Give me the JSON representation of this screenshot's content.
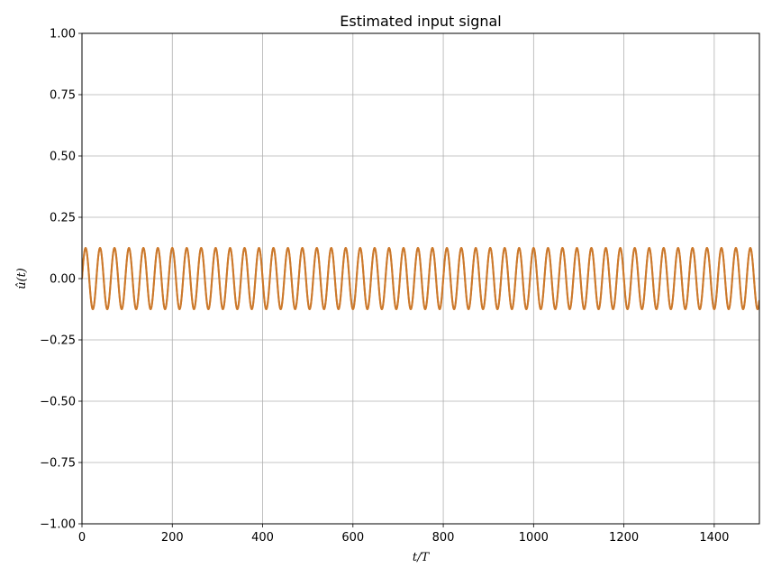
{
  "chart_data": {
    "type": "line",
    "title": "Estimated input signal",
    "xlabel": "t/T",
    "ylabel": "û(t)",
    "xlim": [
      0,
      1500
    ],
    "ylim": [
      -1.0,
      1.0
    ],
    "xticks": [
      0,
      200,
      400,
      600,
      800,
      1000,
      1200,
      1400
    ],
    "xtick_labels": [
      "0",
      "200",
      "400",
      "600",
      "800",
      "1000",
      "1200",
      "1400"
    ],
    "yticks": [
      -1.0,
      -0.75,
      -0.5,
      -0.25,
      0.0,
      0.25,
      0.5,
      0.75,
      1.0
    ],
    "ytick_labels": [
      "−1.00",
      "−0.75",
      "−0.50",
      "−0.25",
      "0.00",
      "0.25",
      "0.50",
      "0.75",
      "1.00"
    ],
    "grid": true,
    "series": [
      {
        "color": "#ff7f0e",
        "signal": "sine",
        "amplitude": 0.125,
        "period": 32,
        "x_range": [
          0,
          1500
        ],
        "x_step": 0.5
      },
      {
        "color": "#c9792e",
        "signal": "sine",
        "amplitude": 0.125,
        "period": 32,
        "x_range": [
          0,
          1500
        ],
        "x_step": 0.5
      }
    ]
  }
}
